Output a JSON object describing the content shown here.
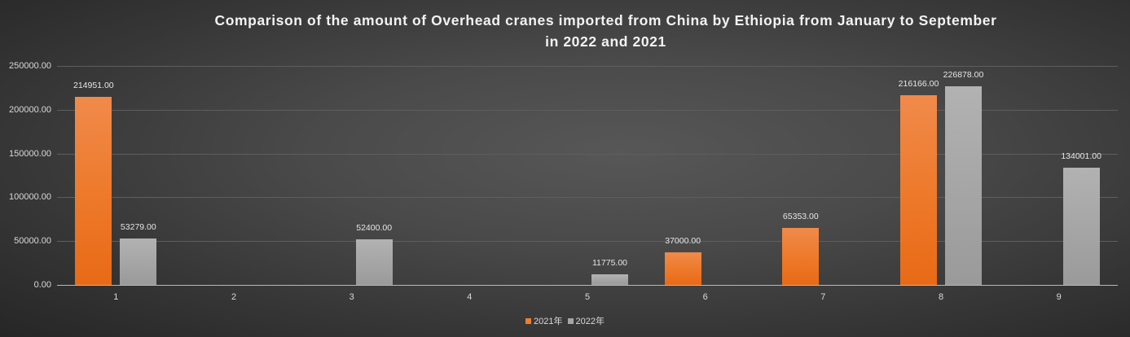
{
  "chart_data": {
    "type": "bar",
    "title": "Comparison of the amount of Overhead cranes imported from China by Ethiopia from January to September in 2022 and 2021",
    "title_lines": [
      "Comparison of the amount of Overhead cranes imported from China by Ethiopia from January to September",
      "in 2022 and 2021"
    ],
    "xlabel": "",
    "ylabel": "",
    "categories": [
      "1",
      "2",
      "3",
      "4",
      "5",
      "6",
      "7",
      "8",
      "9"
    ],
    "series": [
      {
        "name": "2021年",
        "color": "#ed7d31",
        "values": [
          214951.0,
          null,
          null,
          null,
          null,
          37000.0,
          65353.0,
          216166.0,
          null
        ],
        "labels": [
          "214951.00",
          "",
          "",
          "",
          "",
          "37000.00",
          "65353.00",
          "216166.00",
          ""
        ]
      },
      {
        "name": "2022年",
        "color": "#a5a5a5",
        "values": [
          53279.0,
          null,
          52400.0,
          null,
          11775.0,
          null,
          null,
          226878.0,
          134001.0
        ],
        "labels": [
          "53279.00",
          "",
          "52400.00",
          "",
          "11775.00",
          "",
          "",
          "226878.00",
          "134001.00"
        ]
      }
    ],
    "ylim": [
      0,
      250000
    ],
    "yticks": [
      "0.00",
      "50000.00",
      "100000.00",
      "150000.00",
      "200000.00",
      "250000.00"
    ],
    "grid": true,
    "legend_position": "bottom"
  }
}
